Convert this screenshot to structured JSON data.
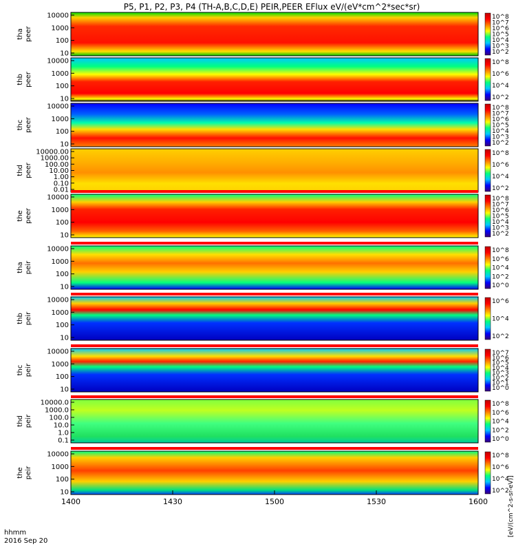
{
  "chart_data": {
    "type": "heatmap",
    "title": "P5, P1, P2, P3, P4 (TH-A,B,C,D,E) PEIR,PEER EFlux eV/(eV*cm^2*sec*sr)",
    "x_axis": {
      "ticks": [
        "1400",
        "1430",
        "1500",
        "1530",
        "1600"
      ],
      "range_minutes": [
        0,
        120
      ],
      "corner_label_1": "hhmm",
      "corner_label_2": "2016 Sep 20"
    },
    "colorbar_label": "[eV/(cm^2-s-sr-eV)]",
    "colorscale": [
      "#3a007a",
      "#0000ff",
      "#00c8ff",
      "#00ff80",
      "#ffff00",
      "#ff8000",
      "#ff0000",
      "#c00000"
    ],
    "panels": [
      {
        "label1": "tha",
        "label2": "peer",
        "y_scale": "log",
        "y_ticks": [
          "10000",
          "1000",
          "100",
          "10"
        ],
        "colorbar_ticks": [
          "10^8",
          "10^7",
          "10^6",
          "10^5",
          "10^4",
          "10^3",
          "10^2"
        ],
        "flag_bar": false
      },
      {
        "label1": "thb",
        "label2": "peer",
        "y_scale": "log",
        "y_ticks": [
          "10000",
          "1000",
          "100",
          "10"
        ],
        "colorbar_ticks": [
          "10^8",
          "10^6",
          "10^4",
          "10^2"
        ],
        "flag_bar": false
      },
      {
        "label1": "thc",
        "label2": "peer",
        "y_scale": "log",
        "y_ticks": [
          "10000",
          "1000",
          "100",
          "10"
        ],
        "colorbar_ticks": [
          "10^8",
          "10^7",
          "10^6",
          "10^5",
          "10^4",
          "10^3",
          "10^2"
        ],
        "flag_bar": false
      },
      {
        "label1": "thd",
        "label2": "peer",
        "y_scale": "log",
        "y_ticks": [
          "10000.00",
          "1000.00",
          "100.00",
          "10.00",
          "1.00",
          "0.10",
          "0.01"
        ],
        "colorbar_ticks": [
          "10^8",
          "10^6",
          "10^4",
          "10^2"
        ],
        "flag_bar": false
      },
      {
        "label1": "the",
        "label2": "peer",
        "y_scale": "log",
        "y_ticks": [
          "10000",
          "1000",
          "100",
          "10"
        ],
        "colorbar_ticks": [
          "10^8",
          "10^7",
          "10^6",
          "10^5",
          "10^4",
          "10^3",
          "10^2"
        ],
        "flag_bar": true
      },
      {
        "label1": "tha",
        "label2": "peir",
        "y_scale": "log",
        "y_ticks": [
          "10000",
          "1000",
          "100",
          "10"
        ],
        "colorbar_ticks": [
          "10^8",
          "10^6",
          "10^4",
          "10^2",
          "10^0"
        ],
        "flag_bar": true
      },
      {
        "label1": "thb",
        "label2": "peir",
        "y_scale": "log",
        "y_ticks": [
          "10000",
          "1000",
          "100",
          "10"
        ],
        "colorbar_ticks": [
          "10^6",
          "10^4",
          "10^2"
        ],
        "flag_bar": true
      },
      {
        "label1": "thc",
        "label2": "peir",
        "y_scale": "log",
        "y_ticks": [
          "10000",
          "1000",
          "100",
          "10"
        ],
        "colorbar_ticks": [
          "10^7",
          "10^6",
          "10^5",
          "10^4",
          "10^3",
          "10^2",
          "10^1",
          "10^0"
        ],
        "flag_bar": true
      },
      {
        "label1": "thd",
        "label2": "peir",
        "y_scale": "log",
        "y_ticks": [
          "10000.0",
          "1000.0",
          "100.0",
          "10.0",
          "1.0",
          "0.1"
        ],
        "colorbar_ticks": [
          "10^8",
          "10^6",
          "10^4",
          "10^2",
          "10^0"
        ],
        "flag_bar": true
      },
      {
        "label1": "the",
        "label2": "peir",
        "y_scale": "log",
        "y_ticks": [
          "10000",
          "1000",
          "100",
          "10"
        ],
        "colorbar_ticks": [
          "10^8",
          "10^6",
          "10^4",
          "10^2"
        ],
        "flag_bar": true
      }
    ]
  }
}
